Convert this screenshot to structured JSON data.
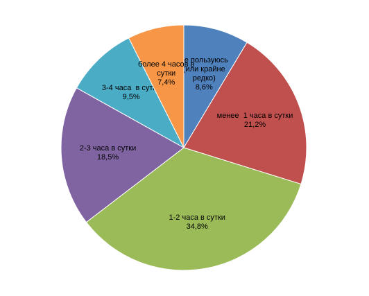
{
  "chart_data": {
    "type": "pie",
    "categories": [
      "не пользуюсь (или крайне редко)",
      "менее  1 часа в сутки",
      "1-2 часа в сутки",
      "2-3 часа в сутки",
      "3-4 часа  в сутки",
      "более 4 часов в сутки"
    ],
    "values": [
      8.6,
      21.2,
      34.8,
      18.5,
      9.5,
      7.4
    ],
    "value_labels": [
      "8,6%",
      "21,2%",
      "34,8%",
      "18,5%",
      "9,5%",
      "7,4%"
    ],
    "colors": [
      "#4f81bd",
      "#c0504d",
      "#9bbb59",
      "#8064a2",
      "#4bacc6",
      "#f79646"
    ]
  }
}
